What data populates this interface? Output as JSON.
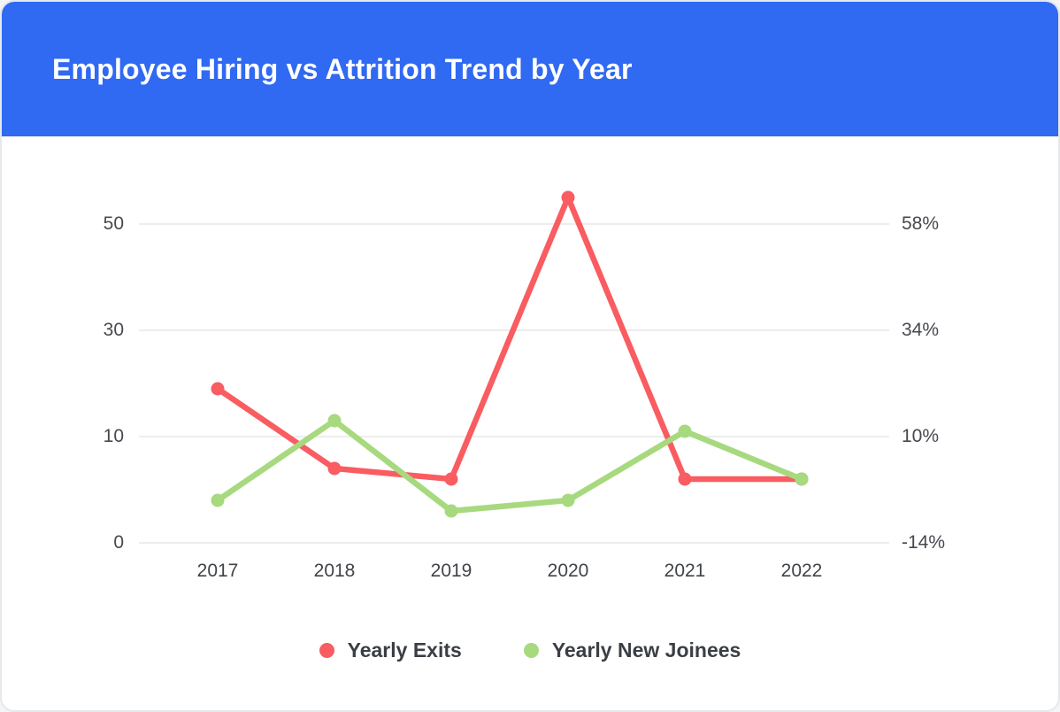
{
  "header": {
    "title": "Employee Hiring vs Attrition Trend by Year",
    "bg_color": "#3069F2",
    "text_color": "#ffffff"
  },
  "chart_data": {
    "type": "line",
    "title": "Employee Hiring vs Attrition Trend by Year",
    "categories": [
      "2017",
      "2018",
      "2019",
      "2020",
      "2021",
      "2022"
    ],
    "series": [
      {
        "name": "Yearly Exits",
        "color": "#F95C61",
        "values": [
          19,
          7,
          6,
          55,
          6,
          6
        ]
      },
      {
        "name": "Yearly New Joinees",
        "color": "#A7D97E",
        "values": [
          4,
          13,
          3,
          4,
          11,
          6
        ]
      }
    ],
    "left_axis": {
      "ticks": [
        0,
        10,
        30,
        50
      ],
      "spacing": "equal (non-linear scale)"
    },
    "right_axis": {
      "ticks": [
        "-14%",
        "10%",
        "34%",
        "58%"
      ]
    },
    "grid": true,
    "gridline_color": "#ededed",
    "legend_position": "bottom"
  }
}
